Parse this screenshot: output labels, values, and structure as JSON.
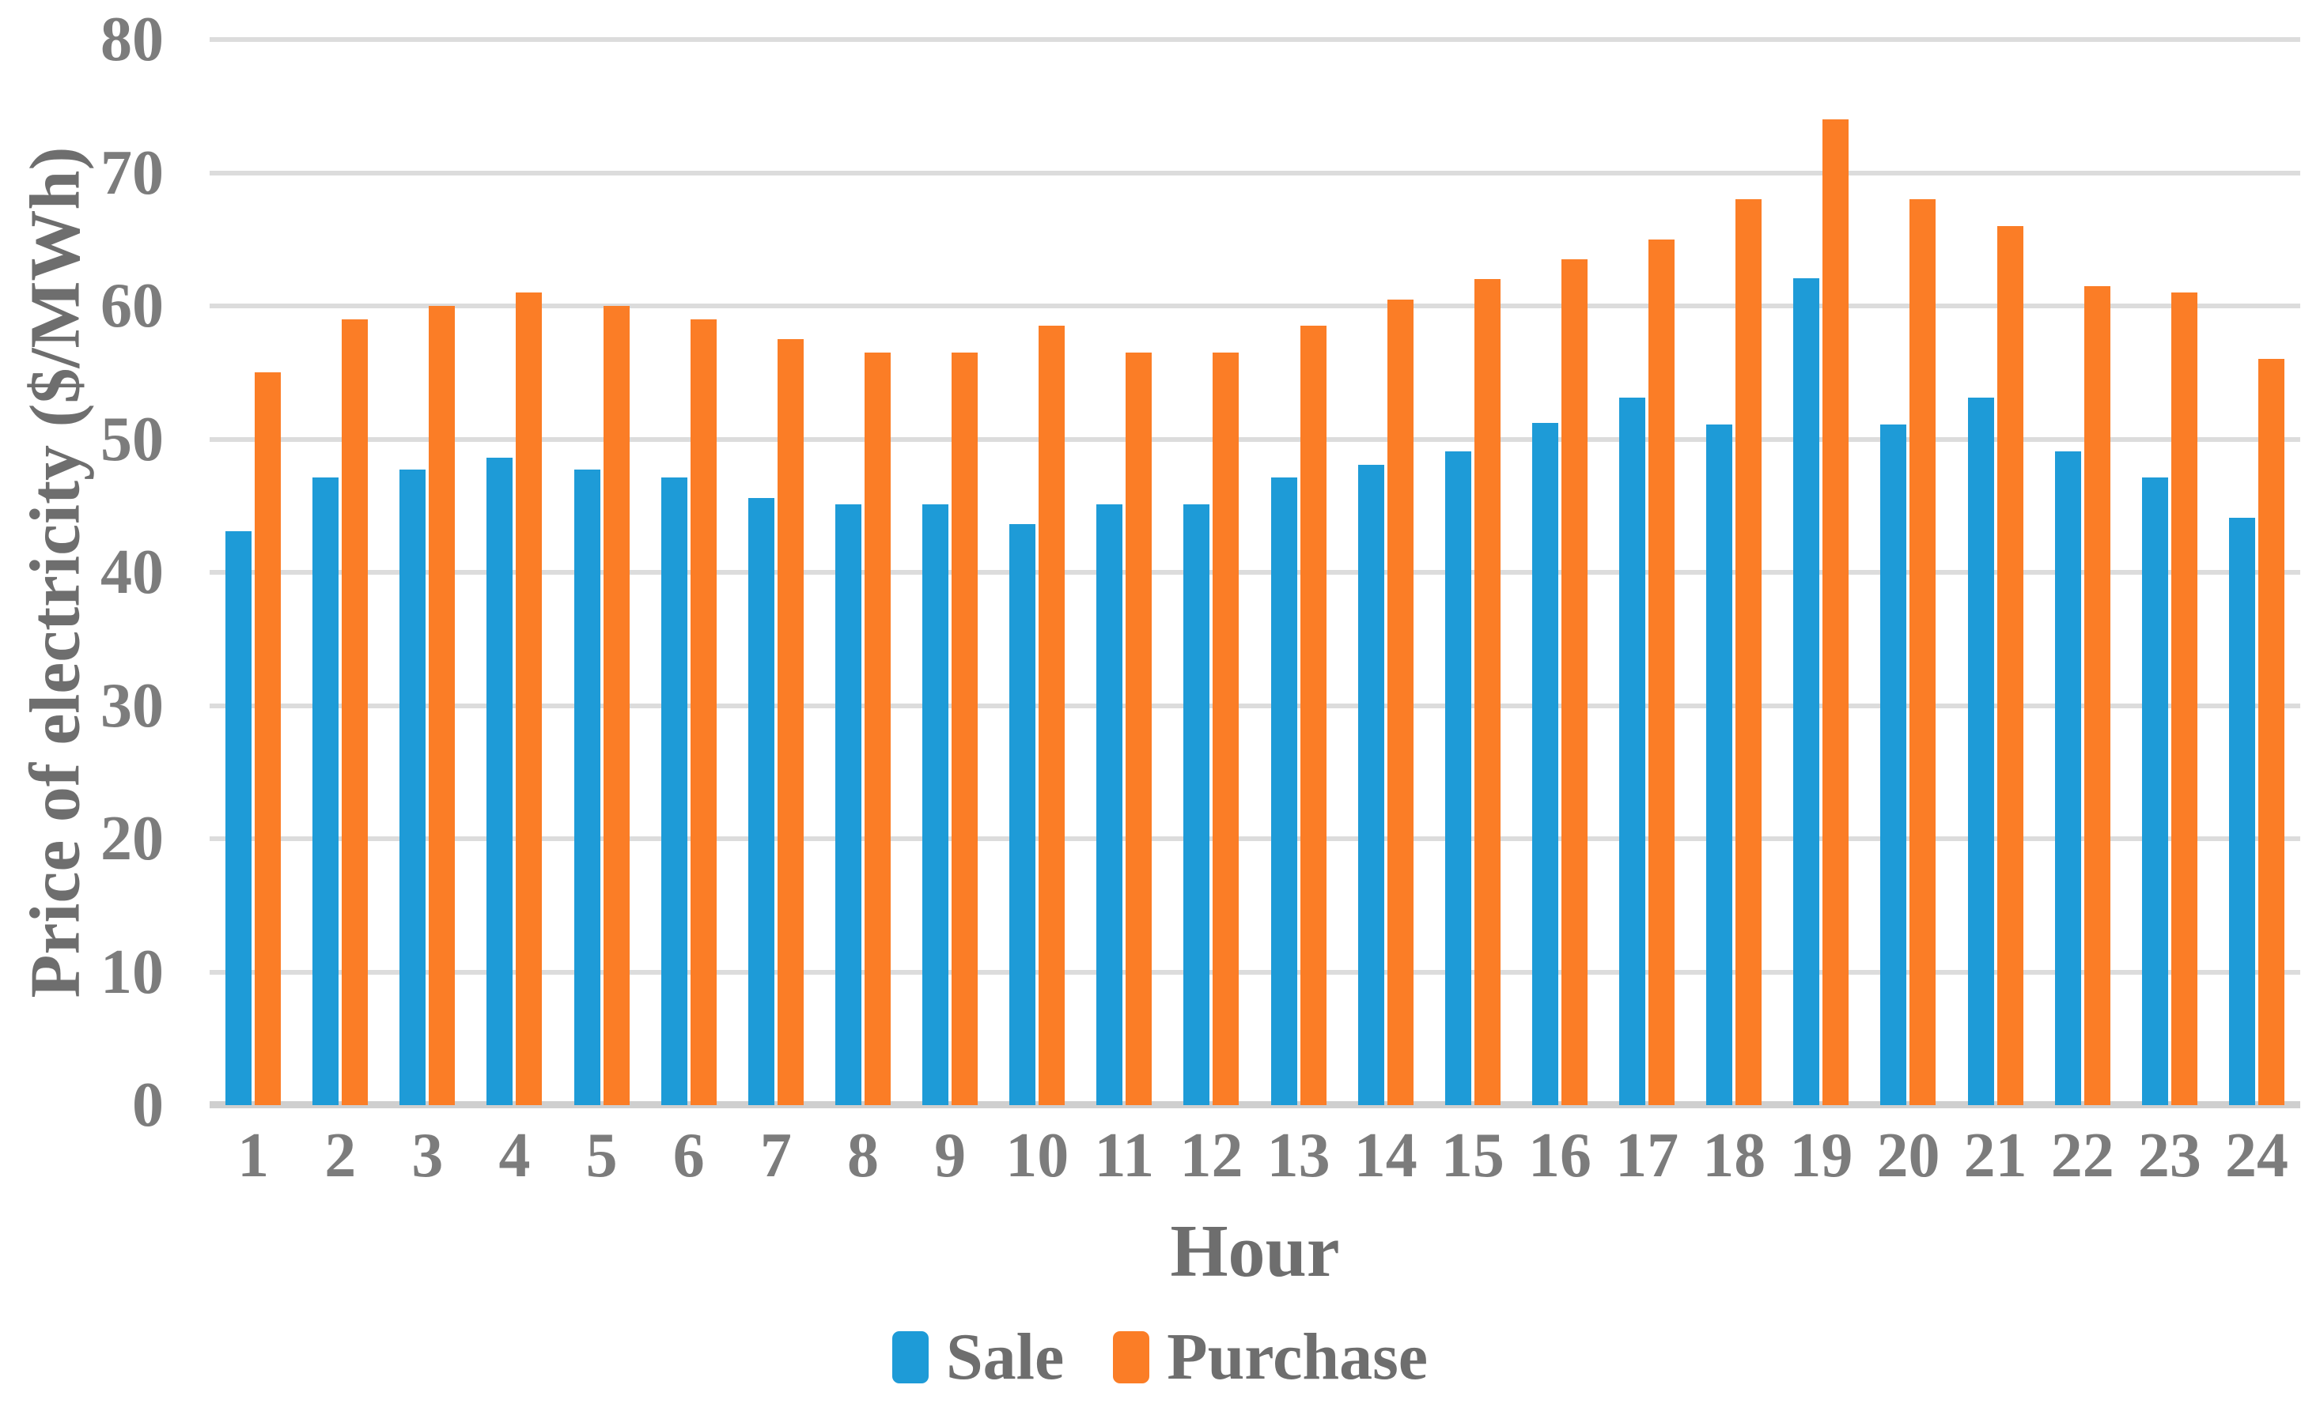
{
  "figure": {
    "y_axis": {
      "title": "Price of electricity ($/MWh)",
      "tick_labels": [
        "0",
        "10",
        "20",
        "30",
        "40",
        "50",
        "60",
        "70",
        "80"
      ],
      "min": 0,
      "max": 80,
      "step": 10
    },
    "x_axis": {
      "title": "Hour"
    },
    "colors": {
      "sale_bar": "#1E9BD7",
      "purchase_bar": "#FB7D26",
      "gridline": "#DCDCDC",
      "axis_line": "#CFCFCF",
      "tick_text": "#7C7C7C",
      "title_text": "#6E6E6E"
    }
  },
  "chart_data": {
    "type": "bar",
    "title": "",
    "xlabel": "Hour",
    "ylabel": "Price of electricity ($/MWh)",
    "ylim": [
      0,
      80
    ],
    "grid": "horizontal",
    "legend_position": "bottom",
    "categories": [
      "1",
      "2",
      "3",
      "4",
      "5",
      "6",
      "7",
      "8",
      "9",
      "10",
      "11",
      "12",
      "13",
      "14",
      "15",
      "16",
      "17",
      "18",
      "19",
      "20",
      "21",
      "22",
      "23",
      "24"
    ],
    "series": [
      {
        "name": "Sale",
        "color": "#1E9BD7",
        "values": [
          43.1,
          47.1,
          47.7,
          48.6,
          47.7,
          47.1,
          45.6,
          45.1,
          45.1,
          43.6,
          45.1,
          45.1,
          47.1,
          48.1,
          49.1,
          51.2,
          53.1,
          51.1,
          62.1,
          51.1,
          53.1,
          49.1,
          47.1,
          44.1
        ]
      },
      {
        "name": "Purchase",
        "color": "#FB7D26",
        "values": [
          55,
          59,
          60,
          61,
          60,
          59,
          57.5,
          56.5,
          56.5,
          58.5,
          56.5,
          56.5,
          58.5,
          60.5,
          62,
          63.5,
          65,
          68,
          74,
          68,
          66,
          61.5,
          61,
          56
        ]
      }
    ]
  }
}
